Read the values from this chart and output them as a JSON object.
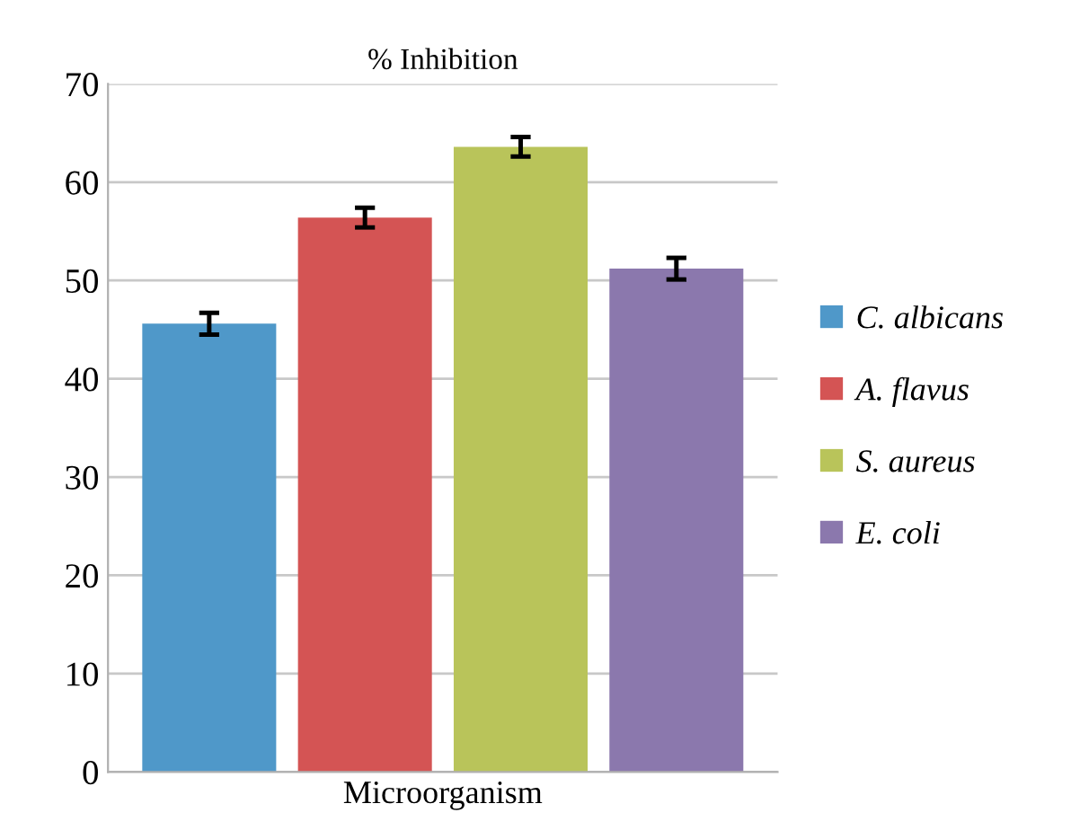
{
  "chart_data": {
    "type": "bar",
    "title": "% Inhibition",
    "xlabel": "Microorganism",
    "categories": [
      null,
      null,
      null,
      null
    ],
    "stacked": true,
    "series": [
      {
        "name": "C. albicans",
        "color": "#4f98c9",
        "values": [
          45.6,
          null,
          null,
          null
        ],
        "errors": [
          1.1,
          null,
          null,
          null
        ]
      },
      {
        "name": "A. flavus",
        "color": "#d45454",
        "values": [
          null,
          56.4,
          null,
          null
        ],
        "errors": [
          null,
          1.0,
          null,
          null
        ]
      },
      {
        "name": "S. aureus",
        "color": "#b9c45a",
        "values": [
          null,
          null,
          63.6,
          null
        ],
        "errors": [
          null,
          null,
          1.0,
          null
        ]
      },
      {
        "name": "E. coli",
        "color": "#8b78ad",
        "values": [
          null,
          null,
          null,
          51.2
        ],
        "errors": [
          null,
          null,
          null,
          1.1
        ]
      }
    ],
    "ylim": [
      0,
      70
    ],
    "yticks": [
      0,
      10,
      20,
      30,
      40,
      50,
      60,
      70
    ],
    "grid": "y",
    "legend": "right"
  }
}
